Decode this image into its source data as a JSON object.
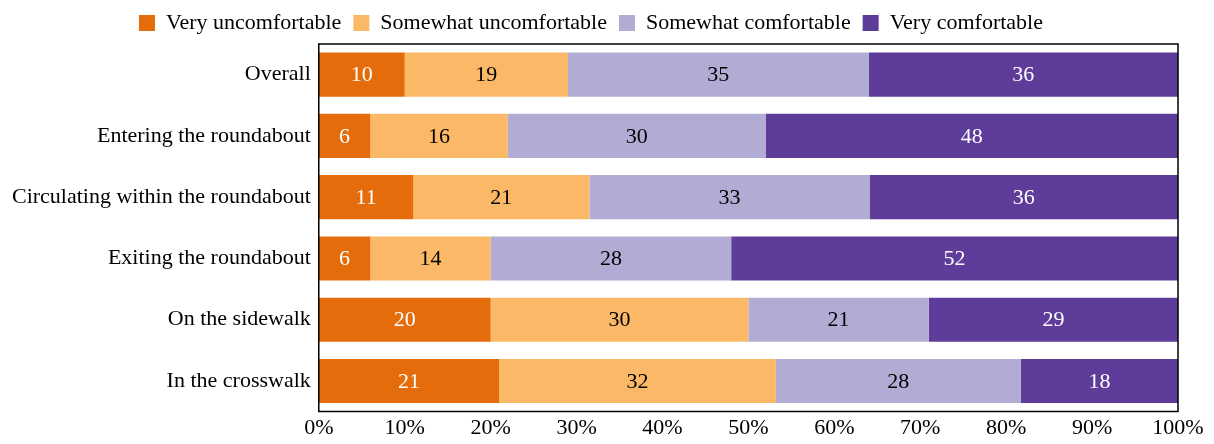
{
  "chart_data": {
    "type": "bar",
    "orientation": "horizontal",
    "stacked": true,
    "categories": [
      "Overall",
      "Entering the roundabout",
      "Circulating within the roundabout",
      "Exiting the roundabout",
      "On the sidewalk",
      "In the crosswalk"
    ],
    "series": [
      {
        "name": "Very uncomfortable",
        "color": "#e46c0a",
        "values": [
          10,
          6,
          11,
          6,
          20,
          21
        ],
        "value_labels": [
          "10",
          "6",
          "11",
          "6",
          "20",
          "21"
        ]
      },
      {
        "name": "Somewhat uncomfortable",
        "color": "#fbb867",
        "values": [
          19,
          16,
          20.5,
          14,
          30,
          32.2
        ],
        "value_labels": [
          "19",
          "16",
          "21",
          "14",
          "30",
          "32"
        ]
      },
      {
        "name": "Somewhat comfortable",
        "color": "#b2acd4",
        "values": [
          35,
          30,
          32.6,
          28,
          21,
          28.5
        ],
        "value_labels": [
          "35",
          "30",
          "33",
          "28",
          "21",
          "28"
        ]
      },
      {
        "name": "Very comfortable",
        "color": "#5e3c99",
        "values": [
          36,
          48,
          35.9,
          52,
          29,
          18.3
        ],
        "value_labels": [
          "36",
          "48",
          "36",
          "52",
          "29",
          "18"
        ]
      }
    ],
    "xlim": [
      0,
      100
    ],
    "xticks": [
      {
        "value": 0,
        "label": "0%"
      },
      {
        "value": 10,
        "label": "10%"
      },
      {
        "value": 20,
        "label": "20%"
      },
      {
        "value": 30,
        "label": "30%"
      },
      {
        "value": 40,
        "label": "40%"
      },
      {
        "value": 50,
        "label": "50%"
      },
      {
        "value": 60,
        "label": "60%"
      },
      {
        "value": 70,
        "label": "70%"
      },
      {
        "value": 80,
        "label": "80%"
      },
      {
        "value": 90,
        "label": "90%"
      },
      {
        "value": 100,
        "label": "100%"
      }
    ],
    "grid": false,
    "legend": "top"
  }
}
